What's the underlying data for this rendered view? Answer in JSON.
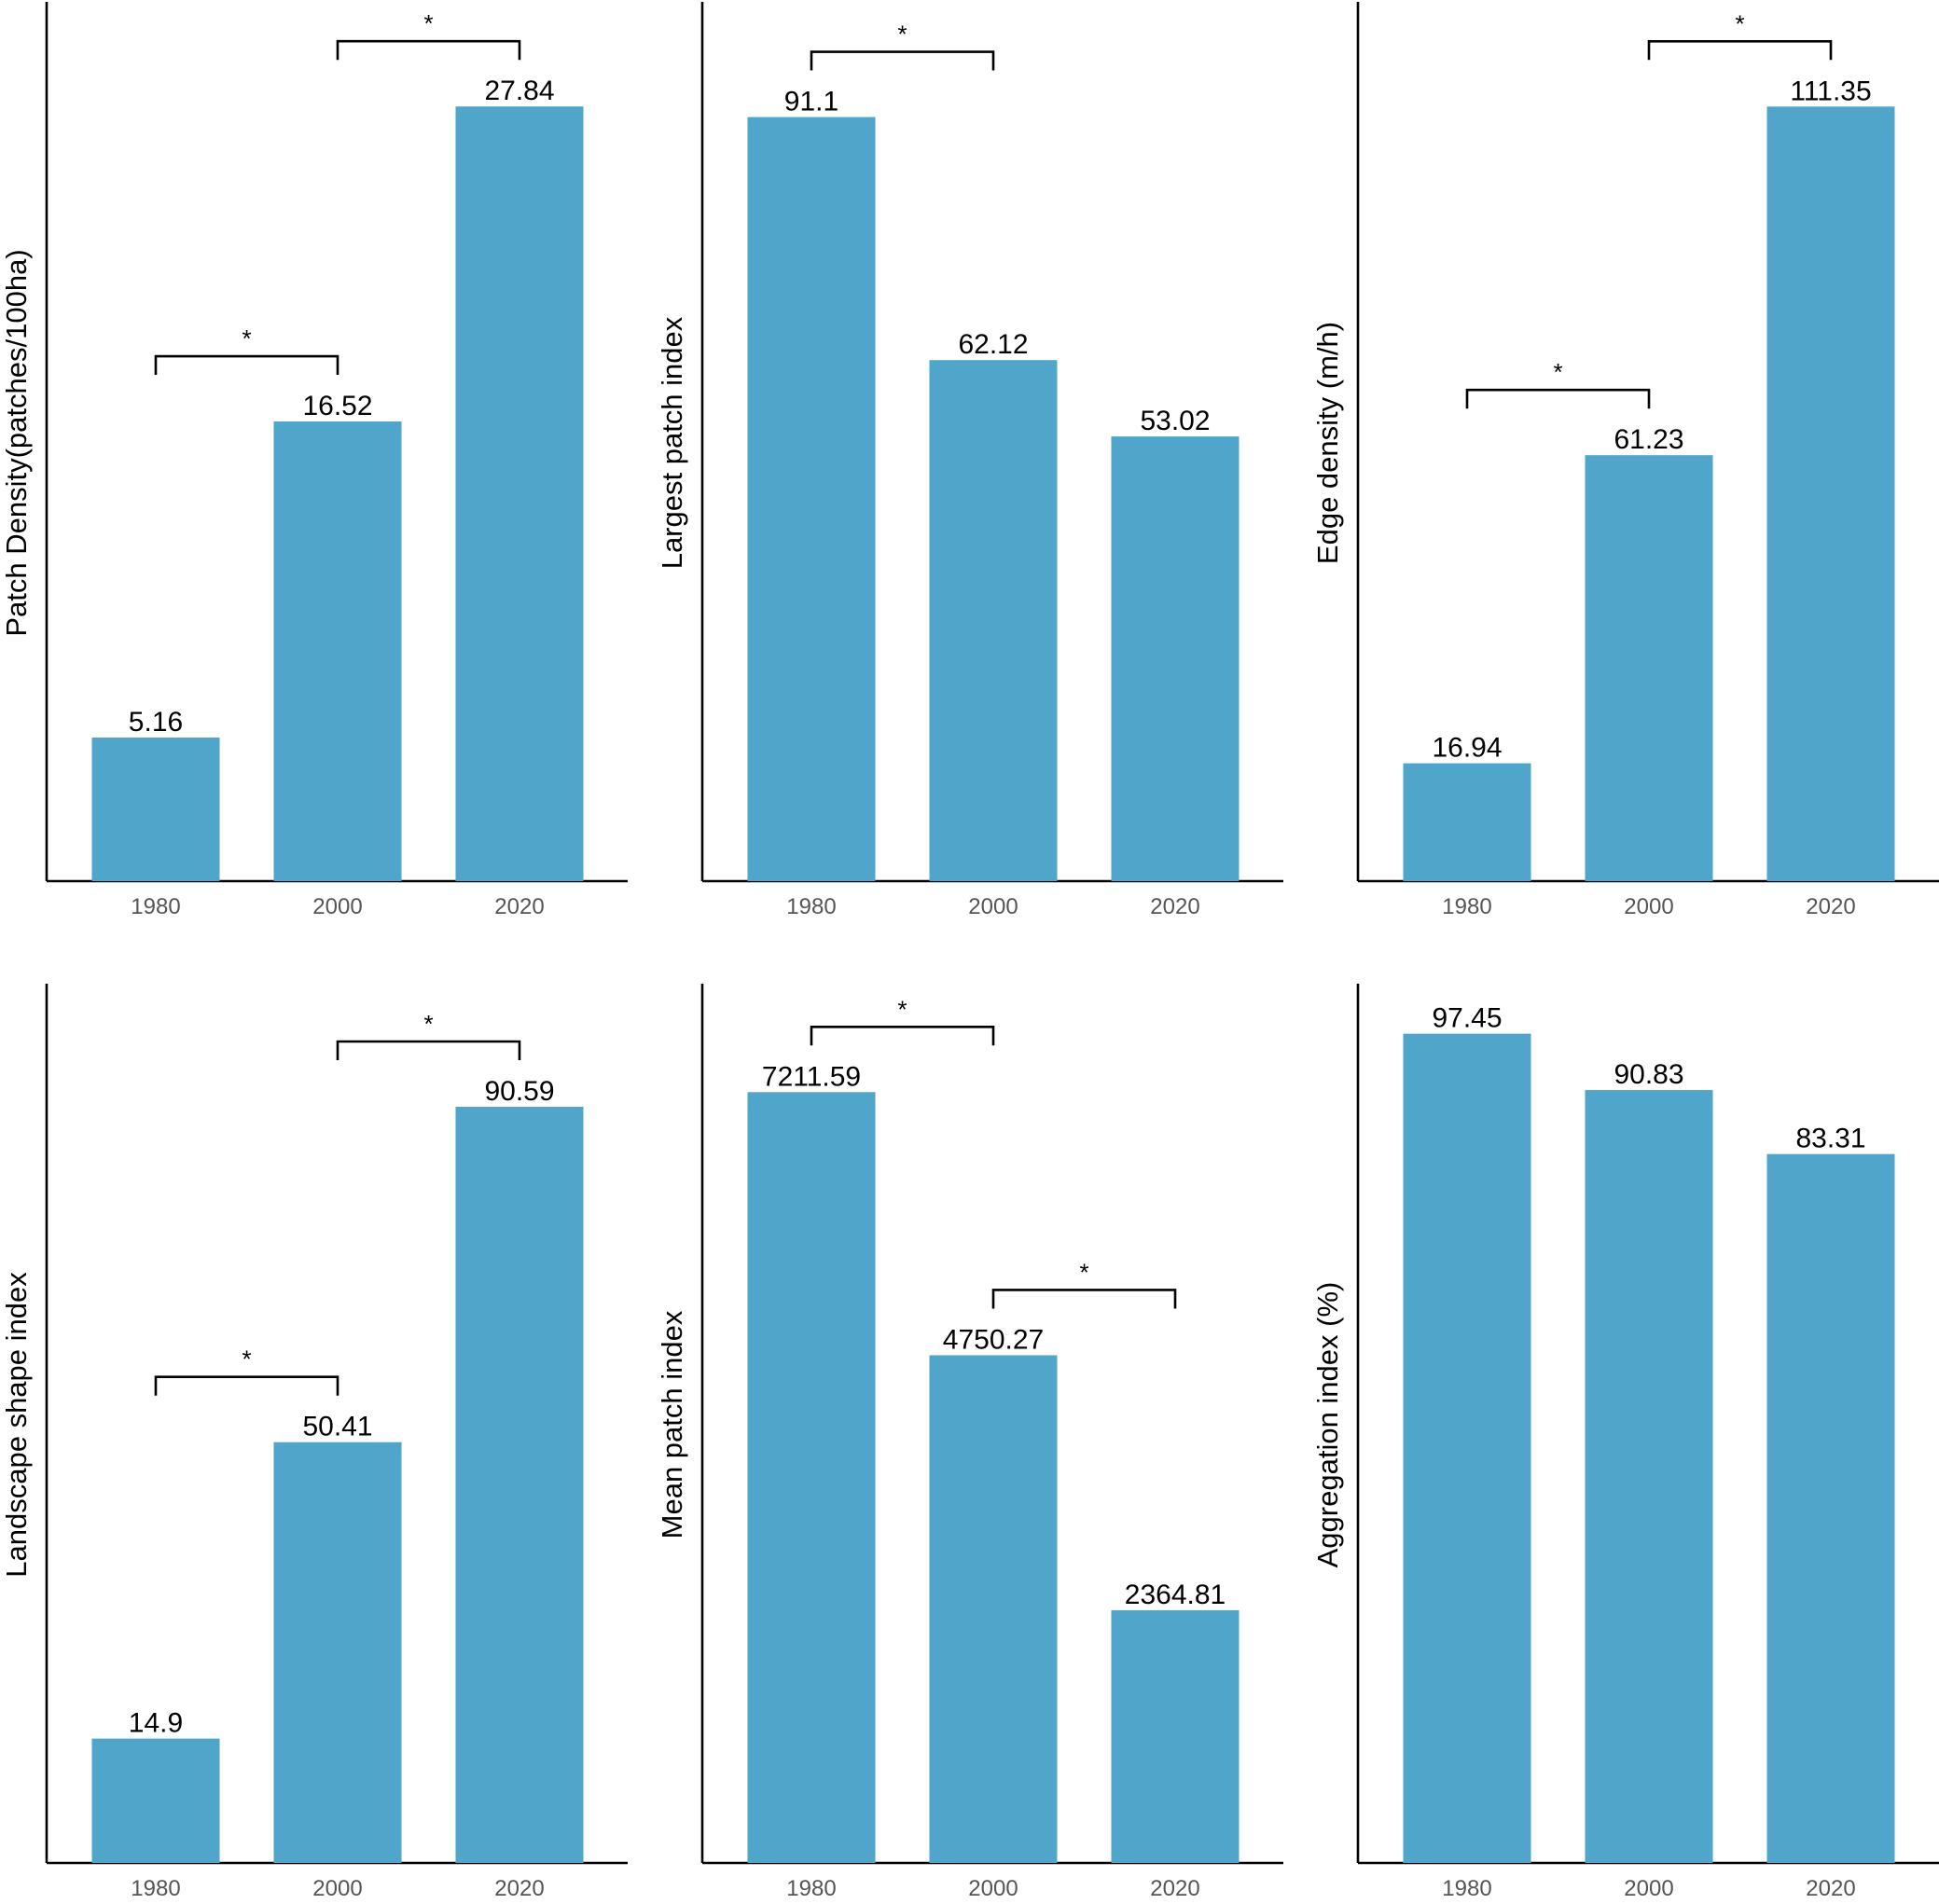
{
  "chart_data": [
    {
      "type": "bar",
      "categories": [
        "1980",
        "2000",
        "2020"
      ],
      "values": [
        5.16,
        16.52,
        27.84
      ],
      "value_labels": [
        "5.16",
        "16.52",
        "27.84"
      ],
      "ylabel": "Patch Density(patches/100ha)",
      "ylim": [
        0,
        31.5
      ],
      "grid": false,
      "significance": [
        {
          "from": 0,
          "to": 1,
          "label": "*"
        },
        {
          "from": 1,
          "to": 2,
          "label": "*"
        }
      ]
    },
    {
      "type": "bar",
      "categories": [
        "1980",
        "2000",
        "2020"
      ],
      "values": [
        91.1,
        62.12,
        53.02
      ],
      "value_labels": [
        "91.1",
        "62.12",
        "53.02"
      ],
      "ylabel": "Largest patch index",
      "ylim": [
        0,
        104.5
      ],
      "grid": false,
      "significance": [
        {
          "from": 0,
          "to": 1,
          "label": "*"
        }
      ]
    },
    {
      "type": "bar",
      "categories": [
        "1980",
        "2000",
        "2020"
      ],
      "values": [
        16.94,
        61.23,
        111.35
      ],
      "value_labels": [
        "16.94",
        "61.23",
        "111.35"
      ],
      "ylabel": "Edge density (m/h)",
      "ylim": [
        0,
        126
      ],
      "grid": false,
      "significance": [
        {
          "from": 0,
          "to": 1,
          "label": "*"
        },
        {
          "from": 1,
          "to": 2,
          "label": "*"
        }
      ]
    },
    {
      "type": "bar",
      "categories": [
        "1980",
        "2000",
        "2020"
      ],
      "values": [
        14.9,
        50.41,
        90.59
      ],
      "value_labels": [
        "14.9",
        "50.41",
        "90.59"
      ],
      "ylabel": "Landscape shape index",
      "ylim": [
        0,
        105
      ],
      "grid": false,
      "significance": [
        {
          "from": 0,
          "to": 1,
          "label": "*"
        },
        {
          "from": 1,
          "to": 2,
          "label": "*"
        }
      ]
    },
    {
      "type": "bar",
      "categories": [
        "1980",
        "2000",
        "2020"
      ],
      "values": [
        7211.59,
        4750.27,
        2364.81
      ],
      "value_labels": [
        "7211.59",
        "4750.27",
        "2364.81"
      ],
      "ylabel": "Mean patch index",
      "ylim": [
        0,
        8200
      ],
      "grid": false,
      "significance": [
        {
          "from": 0,
          "to": 1,
          "label": "*"
        },
        {
          "from": 1,
          "to": 2,
          "label": "*"
        }
      ]
    },
    {
      "type": "bar",
      "categories": [
        "1980",
        "2000",
        "2020"
      ],
      "values": [
        97.45,
        90.83,
        83.31
      ],
      "value_labels": [
        "97.45",
        "90.83",
        "83.31"
      ],
      "ylabel": "Aggregation index (%)",
      "ylim": [
        0,
        103
      ],
      "grid": false,
      "significance": []
    }
  ]
}
